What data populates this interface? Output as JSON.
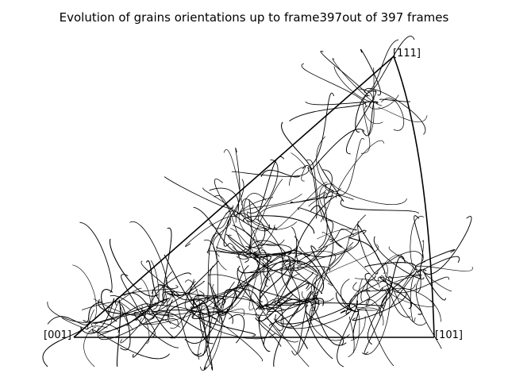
{
  "figure": {
    "title": "Evolution of grains orientations up to frame397out of 397 frames"
  },
  "chart_data": {
    "type": "inverse-pole-figure",
    "title": "Evolution of grains orientations up to frame397out of 397 frames",
    "current_frame": 397,
    "total_frames": 397,
    "corners": {
      "c001": "[001]",
      "c101": "[101]",
      "c111": "[111]"
    },
    "trajectory_count": 300,
    "color": "#000000",
    "boundary_color": "#000000"
  }
}
